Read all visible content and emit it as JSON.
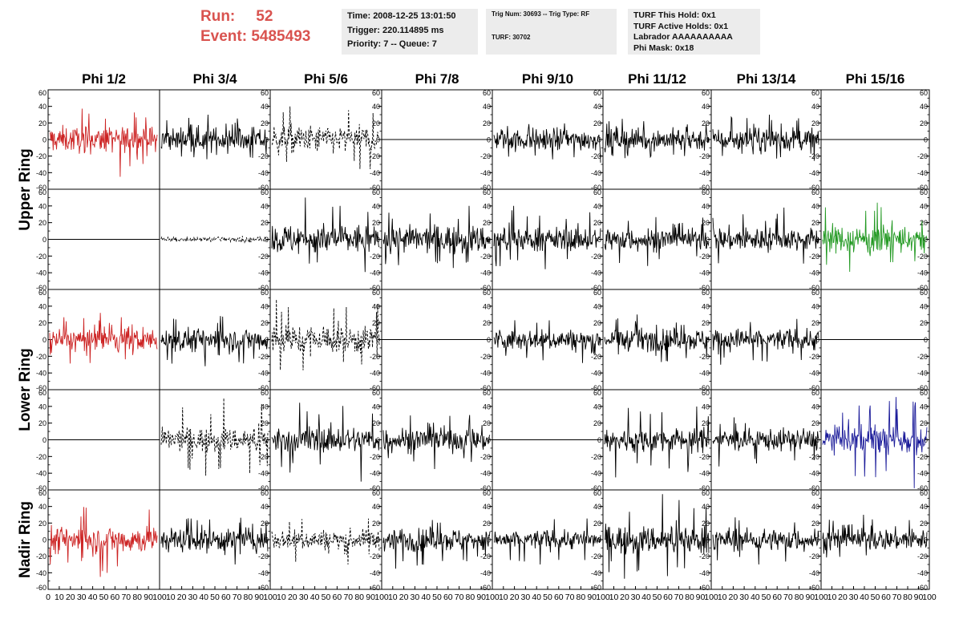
{
  "header": {
    "run_label": "Run:",
    "run_value": "52",
    "event_label": "Event:",
    "event_value": "5485493",
    "info1": [
      "Time: 2008-12-25 13:01:50",
      "Trigger: 220.114895 ms",
      "Priority: 7 -- Queue: 7"
    ],
    "info2": [
      "Trig Num: 30693 -- Trig Type: RF",
      "TURF: 30702"
    ],
    "info3": [
      "TURF This Hold: 0x1",
      "TURF Active Holds: 0x1",
      "Labrador AAAAAAAAAA",
      "Phi Mask: 0x18"
    ]
  },
  "chart_data": {
    "type": "line",
    "columns": [
      "Phi 1/2",
      "Phi 3/4",
      "Phi 5/6",
      "Phi 7/8",
      "Phi 9/10",
      "Phi 11/12",
      "Phi 13/14",
      "Phi 15/16"
    ],
    "ring_labels": [
      "Upper Ring",
      "Lower Ring",
      "Nadir Ring"
    ],
    "ylim": [
      -60,
      60
    ],
    "yticks": [
      "60",
      "40",
      "20",
      "0",
      "-20",
      "-40",
      "-60"
    ],
    "xlim": [
      0,
      100
    ],
    "xticks": [
      "0",
      "10",
      "20",
      "30",
      "40",
      "50",
      "60",
      "70",
      "80",
      "90",
      "100"
    ],
    "colors": {
      "red": "#cc2222",
      "green": "#229922",
      "blue": "#1a1a99",
      "black": "#000000"
    },
    "panels": [
      [
        {
          "style": "red",
          "amp": 13,
          "spike": 45
        },
        {
          "style": "solid",
          "amp": 12,
          "spike": 30
        },
        {
          "style": "dashed",
          "amp": 14,
          "spike": 40
        },
        {
          "style": "flat"
        },
        {
          "style": "solid",
          "amp": 11,
          "spike": 28
        },
        {
          "style": "solid",
          "amp": 11,
          "spike": 25
        },
        {
          "style": "solid",
          "amp": 12,
          "spike": 30
        },
        {
          "style": "flat"
        }
      ],
      [
        {
          "style": "flat"
        },
        {
          "style": "dashed",
          "amp": 2,
          "spike": 4
        },
        {
          "style": "solid",
          "amp": 15,
          "spike": 50
        },
        {
          "style": "solid",
          "amp": 14,
          "spike": 40
        },
        {
          "style": "solid",
          "amp": 12,
          "spike": 40
        },
        {
          "style": "solid",
          "amp": 11,
          "spike": 32
        },
        {
          "style": "solid",
          "amp": 12,
          "spike": 38
        },
        {
          "style": "green",
          "amp": 14,
          "spike": 44
        }
      ],
      [
        {
          "style": "red",
          "amp": 12,
          "spike": 32
        },
        {
          "style": "solid",
          "amp": 12,
          "spike": 32
        },
        {
          "style": "dashed",
          "amp": 15,
          "spike": 48
        },
        {
          "style": "flat"
        },
        {
          "style": "solid",
          "amp": 10,
          "spike": 28
        },
        {
          "style": "solid",
          "amp": 11,
          "spike": 30
        },
        {
          "style": "solid",
          "amp": 11,
          "spike": 30
        },
        {
          "style": "flat"
        }
      ],
      [
        {
          "style": "flat"
        },
        {
          "style": "dashed",
          "amp": 12,
          "spike": 50
        },
        {
          "style": "solid",
          "amp": 13,
          "spike": 50
        },
        {
          "style": "solid",
          "amp": 12,
          "spike": 35
        },
        {
          "style": "flat"
        },
        {
          "style": "solid",
          "amp": 12,
          "spike": 45
        },
        {
          "style": "solid",
          "amp": 11,
          "spike": 32
        },
        {
          "style": "blue",
          "amp": 14,
          "spike": 58
        }
      ],
      [
        {
          "style": "red",
          "amp": 14,
          "spike": 45
        },
        {
          "style": "solid",
          "amp": 12,
          "spike": 30
        },
        {
          "style": "dashed",
          "amp": 10,
          "spike": 30
        },
        {
          "style": "solid",
          "amp": 12,
          "spike": 35
        },
        {
          "style": "solid",
          "amp": 10,
          "spike": 30
        },
        {
          "style": "solid",
          "amp": 14,
          "spike": 55
        },
        {
          "style": "solid",
          "amp": 11,
          "spike": 30
        },
        {
          "style": "solid",
          "amp": 11,
          "spike": 30
        }
      ]
    ]
  }
}
